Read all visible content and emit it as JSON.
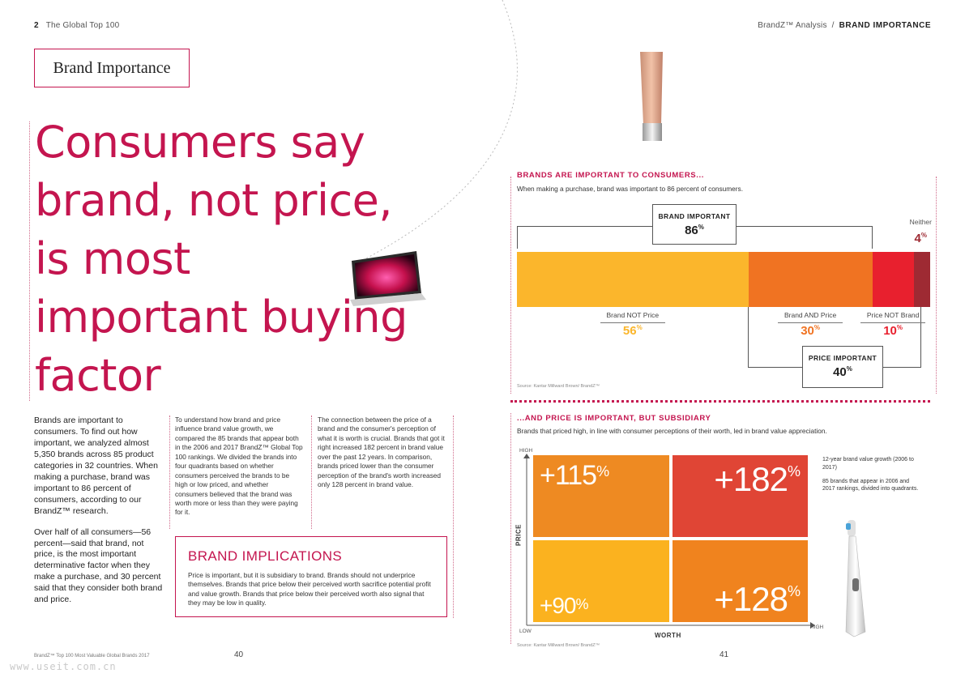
{
  "header": {
    "left_page_number": "2",
    "left_title": "The Global Top 100",
    "right_prefix": "BrandZ™ Analysis",
    "right_separator": "/",
    "right_title": "BRAND IMPORTANCE"
  },
  "left": {
    "section_label": "Brand Importance",
    "headline": "Consumers say brand, not price, is most important buying factor",
    "col1_p1": "Brands are important to consumers. To find out how important, we analyzed almost 5,350 brands across 85 product categories in 32 countries. When making a purchase, brand was important to 86 percent of consumers, according to our BrandZ™ research.",
    "col1_p2": "Over half of all consumers—56 percent—said that brand, not price, is the most important determinative factor when they make a purchase, and 30 percent said that they consider both brand and price.",
    "col2": "To understand how brand and price influence brand value growth, we compared the 85 brands that appear both in the 2006 and 2017 BrandZ™ Global Top 100 rankings. We divided the brands into four quadrants based on whether consumers perceived the brands to be high or low priced, and whether consumers believed that the brand was worth more or less than they were paying for it.",
    "col3": "The connection between the price of a brand and the consumer's perception of what it is worth is crucial. Brands that got it right increased 182 percent in brand value over the past 12 years. In comparison, brands priced lower than the consumer perception of the brand's worth increased only 128 percent in brand value.",
    "implications_title": "BRAND IMPLICATIONS",
    "implications_text": "Price is important, but it is subsidiary to brand. Brands should not underprice themselves. Brands that price below their perceived worth sacrifice potential profit and value growth. Brands that price below their perceived worth also signal that they may be low in quality.",
    "footer": "BrandZ™ Top 100 Most Valuable Global Brands 2017",
    "page_number": "40",
    "watermark": "www.useit.com.cn"
  },
  "right": {
    "chart1_title": "BRANDS ARE IMPORTANT TO CONSUMERS...",
    "chart1_subtitle": "When making a purchase, brand was important to 86 percent of consumers.",
    "brand_important_label": "BRAND IMPORTANT",
    "brand_important_value": "86",
    "neither_label": "Neither",
    "neither_value": "4",
    "price_important_label": "PRICE IMPORTANT",
    "price_important_value": "40",
    "pct_symbol": "%",
    "source1": "Source: Kantar Millward Brown/ BrandZ™",
    "chart2_title": "...AND PRICE IS IMPORTANT, BUT SUBSIDIARY",
    "chart2_subtitle": "Brands that priced high, in line with consumer perceptions of their worth, led in brand value appreciation.",
    "axis_high_top": "HIGH",
    "axis_low": "LOW",
    "axis_high_right": "HIGH",
    "y_axis_label": "PRICE",
    "x_axis_label": "WORTH",
    "note1": "12-year brand value growth (2006 to 2017)",
    "note2": "85 brands that appear in 2006 and 2017 rankings, divided into quadrants.",
    "source2": "Source: Kantar Millward Brown/ BrandZ™",
    "page_number": "41"
  },
  "chart_data": [
    {
      "type": "bar",
      "orientation": "horizontal-stacked",
      "title": "BRANDS ARE IMPORTANT TO CONSUMERS...",
      "categories": [
        "Brand NOT Price",
        "Brand AND Price",
        "Price NOT Brand",
        "Neither"
      ],
      "values": [
        56,
        30,
        10,
        4
      ],
      "unit": "%",
      "colors": [
        "#fbb62c",
        "#f07322",
        "#e8202e",
        "#9e2a33"
      ],
      "groups": [
        {
          "name": "BRAND IMPORTANT",
          "value": 86
        },
        {
          "name": "PRICE IMPORTANT",
          "value": 40
        }
      ]
    },
    {
      "type": "heatmap",
      "title": "...AND PRICE IS IMPORTANT, BUT SUBSIDIARY",
      "xlabel": "WORTH",
      "ylabel": "PRICE",
      "x_ticks": [
        "LOW",
        "HIGH"
      ],
      "y_ticks": [
        "LOW",
        "HIGH"
      ],
      "cells": [
        {
          "price": "HIGH",
          "worth": "LOW",
          "value": 115,
          "label": "+115",
          "color": "#ee8a22"
        },
        {
          "price": "HIGH",
          "worth": "HIGH",
          "value": 182,
          "label": "+182",
          "color": "#e04535"
        },
        {
          "price": "LOW",
          "worth": "LOW",
          "value": 90,
          "label": "+90",
          "color": "#fbb21f"
        },
        {
          "price": "LOW",
          "worth": "HIGH",
          "value": 128,
          "label": "+128",
          "color": "#f0831e"
        }
      ],
      "unit": "%"
    }
  ]
}
